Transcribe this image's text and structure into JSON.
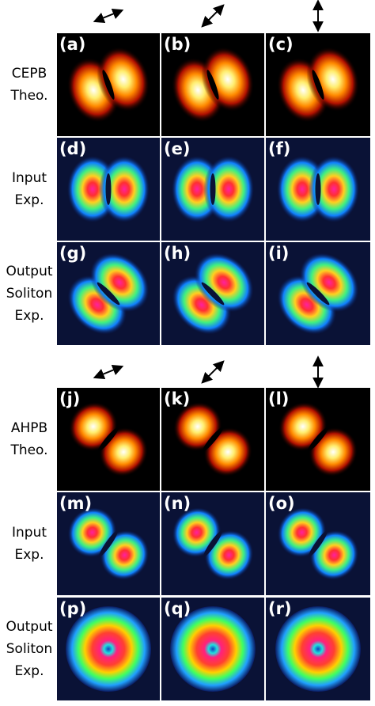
{
  "groups": [
    {
      "rows": [
        {
          "label": [
            "CEPB",
            "Theo."
          ],
          "panels": [
            "(a)",
            "(b)",
            "(c)"
          ]
        },
        {
          "label": [
            "Input",
            "Exp."
          ],
          "panels": [
            "(d)",
            "(e)",
            "(f)"
          ]
        },
        {
          "label": [
            "Output",
            "Soliton",
            "Exp."
          ],
          "panels": [
            "(g)",
            "(h)",
            "(i)"
          ]
        }
      ]
    },
    {
      "rows": [
        {
          "label": [
            "AHPB",
            "Theo."
          ],
          "panels": [
            "(j)",
            "(k)",
            "(l)"
          ]
        },
        {
          "label": [
            "Input",
            "Exp."
          ],
          "panels": [
            "(m)",
            "(n)",
            "(o)"
          ]
        },
        {
          "label": [
            "Output",
            "Soliton",
            "Exp."
          ],
          "panels": [
            "(p)",
            "(q)",
            "(r)"
          ]
        }
      ]
    }
  ]
}
